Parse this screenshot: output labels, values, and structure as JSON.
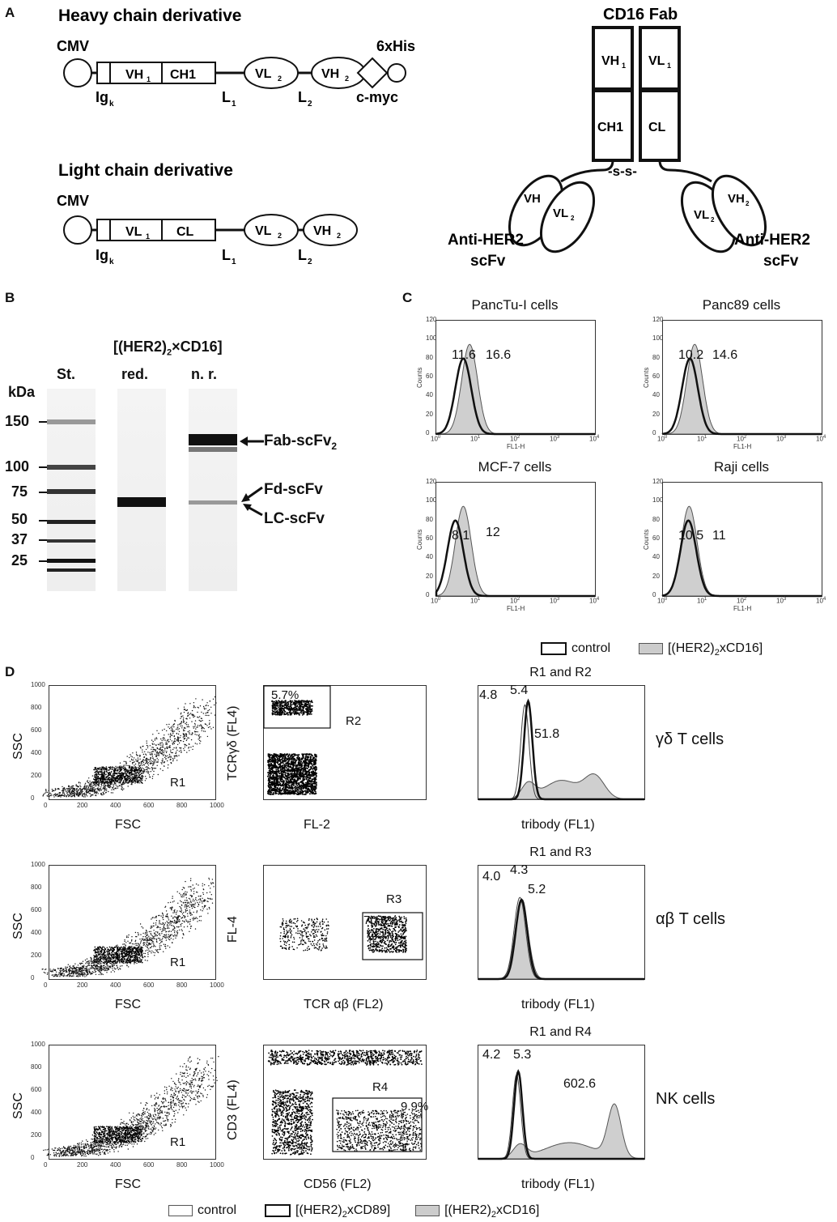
{
  "panels": {
    "A": "A",
    "B": "B",
    "C": "C",
    "D": "D"
  },
  "panelA": {
    "heavy": {
      "title": "Heavy chain derivative",
      "promoter": "CMV",
      "tag": "6xHis",
      "boxes": [
        "VH",
        "CH1"
      ],
      "ovals": [
        "VL",
        "VH"
      ],
      "subs": {
        "vh1": "1",
        "vl2": "2",
        "vh2": "2"
      },
      "bottom": {
        "igk": "Ig",
        "k": "k",
        "l1": "L",
        "l1s": "1",
        "l2": "L",
        "l2s": "2",
        "myc": "c-myc"
      }
    },
    "light": {
      "title": "Light chain derivative",
      "promoter": "CMV",
      "boxes": [
        "VL",
        "CL"
      ],
      "ovals": [
        "VL",
        "VH"
      ],
      "subs": {
        "vl1": "1",
        "vl2": "2",
        "vh2": "2"
      },
      "bottom": {
        "igk": "Ig",
        "k": "k",
        "l1": "L",
        "l1s": "1",
        "l2": "L",
        "l2s": "2"
      }
    },
    "fab": {
      "title": "CD16 Fab",
      "vh1": "VH",
      "vh1s": "1",
      "vl1": "VL",
      "vl1s": "1",
      "ch1": "CH1",
      "cl": "CL",
      "ss": "-s-s-",
      "left_vh": "VH",
      "left_vl": "VL",
      "left_vls": "2",
      "right_vh": "VH",
      "right_vhs": "2",
      "right_vl": "VL",
      "right_vls": "2",
      "label_left_1": "Anti-HER2",
      "label_left_2": "scFv",
      "label_right_1": "Anti-HER2",
      "label_right_2": "scFv"
    }
  },
  "panelB": {
    "header": "[(HER2)",
    "header_sub": "2",
    "header_end": "×CD16]",
    "lanes": [
      "St.",
      "red.",
      "n. r."
    ],
    "unit": "kDa",
    "markers": [
      "150",
      "100",
      "75",
      "50",
      "37",
      "25"
    ],
    "arrows": {
      "fab": "Fab-scFv",
      "fab_sub": "2",
      "fd": "Fd-scFv",
      "lc": "LC-scFv"
    }
  },
  "panelC": {
    "plots": [
      {
        "title": "PancTu-I cells",
        "v1": "11.6",
        "v2": "16.6"
      },
      {
        "title": "Panc89 cells",
        "v1": "10.2",
        "v2": "14.6"
      },
      {
        "title": "MCF-7 cells",
        "v1": "8.1",
        "v2": "12"
      },
      {
        "title": "Raji cells",
        "v1": "10.5",
        "v2": "11"
      }
    ],
    "yticks": [
      "0",
      "20",
      "40",
      "60",
      "80",
      "100",
      "120"
    ],
    "xticks": [
      "10",
      "10",
      "10",
      "10",
      "10"
    ],
    "xexp": [
      "0",
      "1",
      "2",
      "3",
      "4"
    ],
    "ylabel": "Counts",
    "xlabel": "FL1-H",
    "legend": {
      "control": "control",
      "tribody": "[(HER2)",
      "tribody_sub": "2",
      "tribody_end": "xCD16]"
    }
  },
  "panelD": {
    "rows": [
      {
        "scatter": {
          "ylabel": "SSC",
          "xlabel": "FSC",
          "gate": "R1"
        },
        "dot": {
          "ylabel": "TCRγδ (FL4)",
          "xlabel": "FL-2",
          "gate": "R2",
          "pct": "5.7%"
        },
        "hist": {
          "title": "R1 and R2",
          "xlabel": "tribody (FL1)",
          "v1": "4.8",
          "v2": "5.4",
          "v3": "51.8",
          "ymax": "60"
        },
        "cell": "γδ T cells"
      },
      {
        "scatter": {
          "ylabel": "SSC",
          "xlabel": "FSC",
          "gate": "R1"
        },
        "dot": {
          "ylabel": "FL-4",
          "xlabel": "TCR αβ (FL2)",
          "gate": "R3",
          "pct": "70.8%"
        },
        "hist": {
          "title": "R1 and R3",
          "xlabel": "tribody (FL1)",
          "v1": "4.0",
          "v2": "4.3",
          "v3": "5.2",
          "ymax": "50"
        },
        "cell": "αβ T cells"
      },
      {
        "scatter": {
          "ylabel": "SSC",
          "xlabel": "FSC",
          "gate": "R1"
        },
        "dot": {
          "ylabel": "CD3 (FL4)",
          "xlabel": "CD56 (FL2)",
          "gate": "R4",
          "pct": "9.9%"
        },
        "hist": {
          "title": "R1 and R4",
          "xlabel": "tribody (FL1)",
          "v1": "4.2",
          "v2": "5.3",
          "v3": "602.6",
          "ymax": "70"
        },
        "cell": "NK cells"
      }
    ],
    "scatter_ticks": [
      "0",
      "200",
      "400",
      "600",
      "800",
      "1000"
    ],
    "legend": {
      "control": "control",
      "cd89": "[(HER2)",
      "cd89_sub": "2",
      "cd89_end": "xCD89]",
      "cd16": "[(HER2)",
      "cd16_sub": "2",
      "cd16_end": "xCD16]"
    }
  }
}
